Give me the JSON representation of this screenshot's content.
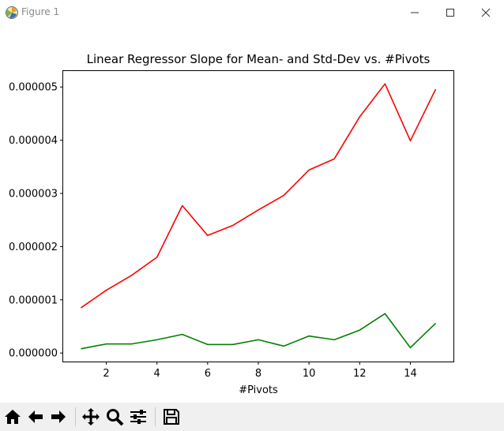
{
  "window": {
    "title": "Figure 1"
  },
  "toolbar": {
    "buttons": [
      "home-icon",
      "back-arrow-icon",
      "forward-arrow-icon",
      "pan-icon",
      "zoom-icon",
      "configure-subplots-icon",
      "save-icon"
    ]
  },
  "chart_data": {
    "type": "line",
    "title": "Linear Regressor Slope for Mean- and Std-Dev vs. #Pivots",
    "xlabel": "#Pivots",
    "ylabel": "",
    "x": [
      1,
      2,
      3,
      4,
      5,
      6,
      7,
      8,
      9,
      10,
      11,
      12,
      13,
      14,
      15
    ],
    "xlim": [
      0.3,
      15.7
    ],
    "ylim": [
      -1.6e-07,
      5.3e-06
    ],
    "xticks": [
      2,
      4,
      6,
      8,
      10,
      12,
      14
    ],
    "yticks": [
      0,
      1e-06,
      2e-06,
      3e-06,
      4e-06,
      5e-06
    ],
    "ytick_labels": [
      "0.000000",
      "0.000001",
      "0.000002",
      "0.000003",
      "0.000004",
      "0.000005"
    ],
    "grid": false,
    "series": [
      {
        "color": "#ff0000",
        "values": [
          8.5e-07,
          1.18e-06,
          1.46e-06,
          1.8e-06,
          2.77e-06,
          2.21e-06,
          2.4e-06,
          2.69e-06,
          2.96e-06,
          3.44e-06,
          3.65e-06,
          4.44e-06,
          5.06e-06,
          3.99e-06,
          4.96e-06
        ]
      },
      {
        "color": "#008000",
        "values": [
          8e-08,
          1.7e-07,
          1.7e-07,
          2.5e-07,
          3.5e-07,
          1.6e-07,
          1.6e-07,
          2.5e-07,
          1.3e-07,
          3.2e-07,
          2.5e-07,
          4.3e-07,
          7.4e-07,
          1e-07,
          5.6e-07
        ]
      }
    ]
  }
}
